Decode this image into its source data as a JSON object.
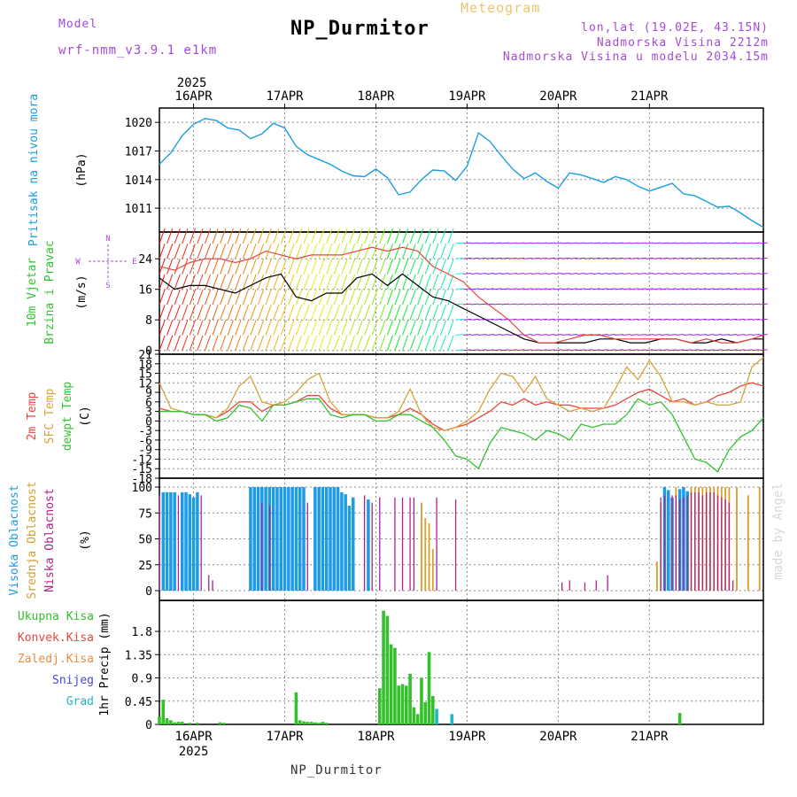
{
  "header": {
    "app_title": "Meteogram",
    "station": "NP_Durmitor",
    "model_label": "Model",
    "model_name": "wrf-nmm_v3.9.1 e1km",
    "coords": "lon,lat (19.02E, 43.15N)",
    "elevation": "Nadmorska Visina 2212m",
    "model_elevation": "Nadmorska Visina u modelu 2034.15m",
    "credit": "made by Angel",
    "footer_station": "NP_Durmitor"
  },
  "colors": {
    "pressure": "#1a9ee0",
    "temp2m": "#e8453c",
    "sfc": "#d9a23a",
    "dewpt": "#2fc42f",
    "high_cloud": "#1d9be6",
    "mid_cloud": "#d4a02e",
    "low_cloud": "#b1238a",
    "precip_total": "#33c02a",
    "precip_conv": "#e8453c",
    "precip_frz": "#f08a3c",
    "snow": "#4646e0",
    "hail": "#1fb8c0",
    "title_purple": "#a44bd8",
    "grid": "#8c8c8c"
  },
  "chart_data": [
    {
      "type": "line",
      "panel": "pressure",
      "ylabel": [
        "Pritisak na nivou mora",
        "(hPa)"
      ],
      "ylim": [
        1008.5,
        1021.5
      ],
      "yticks": [
        1011,
        1014,
        1017,
        1020
      ],
      "x_unit": "hours from 2025-04-15 15:00",
      "x_labels_top": [
        "16APR",
        "17APR",
        "18APR",
        "19APR",
        "20APR",
        "21APR"
      ],
      "x_year": "2025",
      "series": [
        {
          "x": [
            0,
            3,
            6,
            9,
            12,
            15,
            18,
            21,
            24,
            27,
            30,
            33,
            36,
            39,
            42,
            45,
            48,
            51,
            54,
            57,
            60,
            63,
            66,
            69,
            72,
            75,
            78,
            81,
            84,
            87,
            90,
            93,
            96,
            99,
            102,
            105,
            108,
            111,
            114,
            117,
            120,
            123,
            126,
            129,
            132,
            135,
            138,
            141,
            144,
            147,
            150,
            153,
            156,
            159
          ],
          "y": [
            1015.6,
            1016.8,
            1018.6,
            1019.8,
            1020.4,
            1020.2,
            1019.4,
            1019.2,
            1018.3,
            1018.8,
            1019.9,
            1019.4,
            1017.5,
            1016.6,
            1016.1,
            1015.6,
            1014.9,
            1014.4,
            1014.3,
            1015.1,
            1014.2,
            1012.4,
            1012.7,
            1014.0,
            1015.0,
            1014.9,
            1013.9,
            1015.4,
            1018.9,
            1018.0,
            1016.5,
            1015.1,
            1014.1,
            1014.7,
            1013.8,
            1013.1,
            1014.7,
            1014.5,
            1014.1,
            1013.7,
            1014.3,
            1014.0,
            1013.3,
            1012.8,
            1013.2,
            1013.6,
            1012.5,
            1012.3,
            1011.7,
            1011.1,
            1011.2,
            1010.5,
            1009.7,
            1009.0
          ]
        }
      ]
    },
    {
      "type": "line",
      "panel": "wind",
      "ylabel": [
        "10m Vjetar",
        "Brzina i Pravac",
        "(m/s)"
      ],
      "legend_directions": [
        "N",
        "W",
        "E",
        "S"
      ],
      "ylim": [
        -1,
        31
      ],
      "yticks": [
        0,
        8,
        16,
        24
      ],
      "series": [
        {
          "x": [
            0,
            4,
            8,
            12,
            16,
            20,
            24,
            28,
            32,
            36,
            40,
            44,
            48,
            52,
            56,
            60,
            64,
            68,
            72,
            76,
            80,
            84,
            88,
            92,
            96,
            100,
            104,
            108,
            112,
            116,
            120,
            124,
            128,
            132,
            136,
            140,
            144,
            148,
            152,
            156,
            159
          ],
          "y": [
            19,
            16,
            17,
            17,
            16,
            15,
            17,
            19,
            20,
            14,
            13,
            15,
            15,
            19,
            20,
            17,
            20,
            17,
            14,
            13,
            11,
            9,
            7,
            5,
            3,
            2,
            2,
            2,
            2,
            3,
            3,
            2,
            2,
            3,
            3,
            2,
            2,
            3,
            2,
            3,
            3
          ]
        },
        {
          "x": [
            0,
            4,
            8,
            12,
            16,
            20,
            24,
            28,
            32,
            36,
            40,
            44,
            48,
            52,
            56,
            60,
            64,
            68,
            72,
            76,
            80,
            84,
            88,
            92,
            96,
            100,
            104,
            108,
            112,
            116,
            120,
            124,
            128,
            132,
            136,
            140,
            144,
            148,
            152,
            156,
            159
          ],
          "y": [
            22,
            21,
            23,
            24,
            24,
            23,
            24,
            26,
            25,
            24,
            25,
            25,
            25,
            26,
            27,
            26,
            27,
            26,
            22,
            20,
            18,
            14,
            11,
            8,
            4,
            2,
            2,
            3,
            4,
            4,
            3,
            3,
            3,
            3,
            3,
            2,
            3,
            2,
            2,
            3,
            4
          ]
        }
      ]
    },
    {
      "type": "line",
      "panel": "temperature",
      "ylabel": [
        "2m Temp",
        "SFC Temp",
        "dewpt Temp",
        "(C)"
      ],
      "ylim": [
        -18,
        21
      ],
      "yticks": [
        21,
        18,
        15,
        12,
        9,
        6,
        3,
        0,
        -3,
        -6,
        -9,
        -12,
        -15,
        -18
      ],
      "series": [
        {
          "name": "2m Temp",
          "x": [
            0,
            3,
            6,
            9,
            12,
            15,
            18,
            21,
            24,
            27,
            30,
            33,
            36,
            39,
            42,
            45,
            48,
            51,
            54,
            57,
            60,
            63,
            66,
            69,
            72,
            75,
            78,
            81,
            84,
            87,
            90,
            93,
            96,
            99,
            102,
            105,
            108,
            111,
            114,
            117,
            120,
            123,
            126,
            129,
            132,
            135,
            138,
            141,
            144,
            147,
            150,
            153,
            156,
            159
          ],
          "y": [
            4,
            3,
            3,
            2,
            2,
            1,
            3,
            6,
            6,
            3,
            5,
            5,
            6,
            8,
            8,
            4,
            2,
            2,
            2,
            1,
            1,
            2,
            4,
            2,
            -1,
            -3,
            -2,
            -1,
            1,
            3,
            6,
            5,
            7,
            5,
            6,
            5,
            5,
            4,
            4,
            4,
            5,
            7,
            9,
            10,
            8,
            6,
            7,
            5,
            6,
            8,
            9,
            11,
            12,
            11
          ]
        },
        {
          "name": "SFC Temp",
          "x": [
            0,
            3,
            6,
            9,
            12,
            15,
            18,
            21,
            24,
            27,
            30,
            33,
            36,
            39,
            42,
            45,
            48,
            51,
            54,
            57,
            60,
            63,
            66,
            69,
            72,
            75,
            78,
            81,
            84,
            87,
            90,
            93,
            96,
            99,
            102,
            105,
            108,
            111,
            114,
            117,
            120,
            123,
            126,
            129,
            132,
            135,
            138,
            141,
            144,
            147,
            150,
            153,
            156,
            159
          ],
          "y": [
            12,
            4,
            3,
            2,
            2,
            1,
            4,
            11,
            14,
            6,
            5,
            6,
            9,
            13,
            15,
            6,
            2,
            2,
            2,
            1,
            1,
            3,
            10,
            2,
            -2,
            -3,
            -2,
            0,
            3,
            10,
            15,
            14,
            9,
            14,
            7,
            5,
            3,
            4,
            3,
            4,
            10,
            17,
            13,
            19,
            14,
            6,
            6,
            5,
            6,
            5,
            5,
            6,
            17,
            20
          ]
        },
        {
          "name": "dewpt Temp",
          "x": [
            0,
            3,
            6,
            9,
            12,
            15,
            18,
            21,
            24,
            27,
            30,
            33,
            36,
            39,
            42,
            45,
            48,
            51,
            54,
            57,
            60,
            63,
            66,
            69,
            72,
            75,
            78,
            81,
            84,
            87,
            90,
            93,
            96,
            99,
            102,
            105,
            108,
            111,
            114,
            117,
            120,
            123,
            126,
            129,
            132,
            135,
            138,
            141,
            144,
            147,
            150,
            153,
            156,
            159
          ],
          "y": [
            3,
            3,
            3,
            2,
            2,
            0,
            1,
            5,
            4,
            0,
            5,
            5,
            6,
            7,
            7,
            2,
            1,
            2,
            2,
            0,
            0,
            2,
            2,
            0,
            -2,
            -6,
            -11,
            -12,
            -15,
            -7,
            -2,
            -3,
            -4,
            -6,
            -3,
            -4,
            -6,
            -1,
            -2,
            -1,
            -1,
            2,
            7,
            5,
            6,
            2,
            -5,
            -12,
            -13,
            -16,
            -9,
            -5,
            -3,
            1
          ]
        }
      ]
    },
    {
      "type": "bar",
      "panel": "cloud",
      "ylabel": [
        "Visoka Oblacnost",
        "Srednja Oblacnost",
        "Niska Oblacnost",
        "(%)"
      ],
      "ylim": [
        0,
        100
      ],
      "yticks": [
        0,
        25,
        50,
        75,
        100
      ],
      "series": [
        {
          "name": "Visoka Oblacnost",
          "x": [
            1,
            2,
            3,
            4,
            6,
            7,
            8,
            9,
            10,
            24,
            25,
            26,
            27,
            28,
            29,
            30,
            31,
            32,
            33,
            34,
            35,
            36,
            37,
            38,
            41,
            42,
            43,
            44,
            45,
            46,
            47,
            48,
            49,
            50,
            51,
            55,
            133,
            134,
            135,
            137,
            138,
            139
          ],
          "y": [
            95,
            95,
            95,
            95,
            95,
            95,
            93,
            90,
            95,
            100,
            100,
            100,
            100,
            100,
            100,
            100,
            100,
            100,
            100,
            100,
            100,
            100,
            100,
            100,
            100,
            100,
            100,
            100,
            100,
            100,
            100,
            95,
            93,
            82,
            90,
            88,
            100,
            97,
            90,
            98,
            100,
            96
          ]
        },
        {
          "name": "Srednja Oblacnost",
          "x": [
            69,
            70,
            71,
            72,
            131,
            132,
            136,
            140,
            141,
            142,
            143,
            144,
            145,
            146,
            147,
            148,
            149,
            150,
            152,
            155,
            158
          ],
          "y": [
            85,
            70,
            65,
            40,
            28,
            85,
            100,
            100,
            100,
            100,
            100,
            100,
            100,
            100,
            100,
            100,
            100,
            100,
            100,
            92,
            100
          ]
        },
        {
          "name": "Niska Oblacnost",
          "x": [
            0,
            5,
            11,
            13,
            14,
            27,
            29,
            39,
            54,
            56,
            58,
            62,
            64,
            66,
            67,
            73,
            78,
            106,
            108,
            112,
            115,
            118,
            132,
            133,
            135,
            136,
            137,
            138,
            139,
            140,
            141,
            142,
            143,
            144,
            145,
            146,
            147,
            148,
            149,
            150,
            151
          ],
          "y": [
            92,
            92,
            92,
            15,
            10,
            85,
            82,
            85,
            92,
            85,
            90,
            90,
            90,
            90,
            90,
            90,
            88,
            8,
            10,
            8,
            10,
            15,
            90,
            92,
            92,
            92,
            88,
            90,
            92,
            95,
            95,
            95,
            92,
            95,
            95,
            95,
            92,
            90,
            88,
            85,
            10
          ]
        }
      ]
    },
    {
      "type": "bar",
      "panel": "precip",
      "ylabel": [
        "1hr Precip (mm)"
      ],
      "legend": [
        "Ukupna Kisa",
        "Konvek.Kisa",
        "Zaledj.Kisa",
        "Snijeg",
        "Grad"
      ],
      "ylim": [
        0,
        2.4
      ],
      "yticks": [
        0,
        0.45,
        0.9,
        1.35,
        1.8
      ],
      "series": [
        {
          "name": "Ukupna Kisa",
          "x": [
            0,
            1,
            2,
            3,
            4,
            5,
            6,
            8,
            10,
            16,
            17,
            36,
            37,
            38,
            39,
            40,
            41,
            42,
            43,
            44,
            58,
            59,
            60,
            61,
            62,
            63,
            64,
            65,
            66,
            67,
            68,
            69,
            70,
            71,
            72,
            137
          ],
          "y": [
            0.15,
            0.48,
            0.12,
            0.08,
            0.04,
            0.05,
            0.05,
            0.03,
            0.03,
            0.04,
            0.03,
            0.62,
            0.08,
            0.06,
            0.05,
            0.05,
            0.04,
            0.03,
            0.05,
            0.03,
            0.7,
            2.2,
            2.1,
            1.55,
            1.48,
            0.75,
            0.78,
            0.75,
            0.98,
            0.33,
            0.2,
            0.9,
            0.43,
            1.4,
            0.55,
            0.22
          ]
        },
        {
          "name": "Grad",
          "x": [
            73,
            77
          ],
          "y": [
            0.3,
            0.2
          ]
        }
      ],
      "x_labels_bottom": [
        "16APR",
        "17APR",
        "18APR",
        "19APR",
        "20APR",
        "21APR"
      ],
      "x_year": "2025"
    }
  ]
}
